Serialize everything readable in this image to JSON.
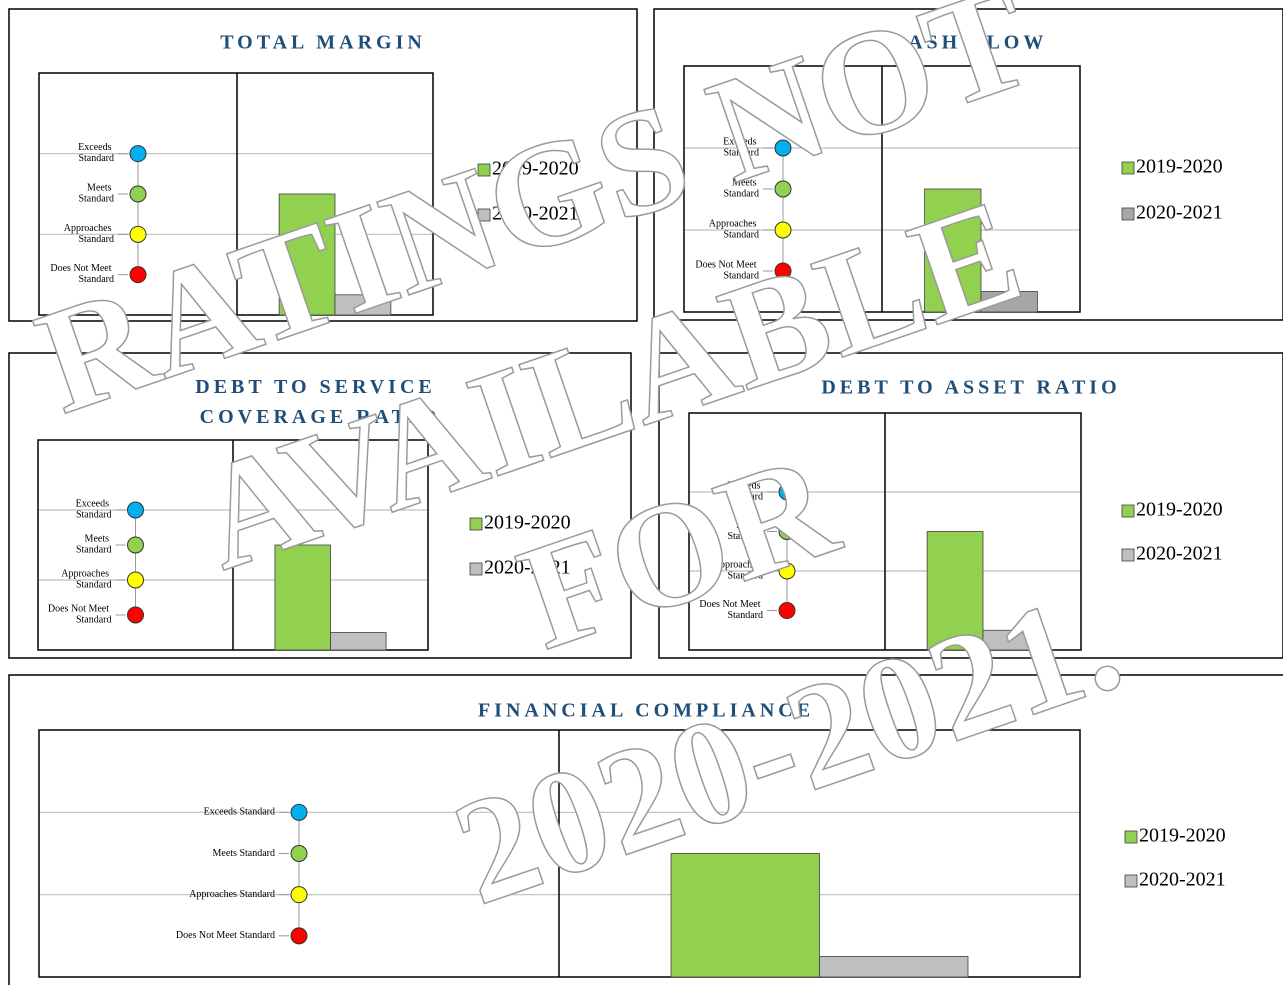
{
  "chart_data": [
    {
      "type": "bar",
      "title": "TOTAL MARGIN",
      "series": [
        {
          "name": "2019-2020",
          "color": "#92d050",
          "values": [
            3
          ]
        },
        {
          "name": "2020-2021",
          "color": "#bfbfbf",
          "values": [
            0.5
          ]
        }
      ],
      "ylim": [
        0,
        6
      ],
      "yticks": [
        {
          "value": 1,
          "label": "Does Not Meet Standard"
        },
        {
          "value": 2,
          "label": "Approaches Standard"
        },
        {
          "value": 3,
          "label": "Meets Standard"
        },
        {
          "value": 4,
          "label": "Exceeds Standard"
        }
      ],
      "tick_colors": [
        "#ff0000",
        "#ffff00",
        "#92d050",
        "#00b0f0"
      ],
      "gridlines": [
        2,
        4
      ]
    },
    {
      "type": "bar",
      "title": "CASH FLOW",
      "series": [
        {
          "name": "2019-2020",
          "color": "#92d050",
          "values": [
            3
          ]
        },
        {
          "name": "2020-2021",
          "color": "#a6a6a6",
          "values": [
            0.5
          ]
        }
      ],
      "ylim": [
        0,
        6
      ],
      "yticks": [
        {
          "value": 1,
          "label": "Does Not Meet Standard"
        },
        {
          "value": 2,
          "label": "Approaches Standard"
        },
        {
          "value": 3,
          "label": "Meets Standard"
        },
        {
          "value": 4,
          "label": "Exceeds Standard"
        }
      ],
      "tick_colors": [
        "#ff0000",
        "#ffff00",
        "#92d050",
        "#00b0f0"
      ],
      "gridlines": [
        2,
        4
      ]
    },
    {
      "type": "bar",
      "title": "DEBT TO SERVICE COVERAGE RATIO",
      "series": [
        {
          "name": "2019-2020",
          "color": "#92d050",
          "values": [
            3
          ]
        },
        {
          "name": "2020-2021",
          "color": "#bfbfbf",
          "values": [
            0.5
          ]
        }
      ],
      "ylim": [
        0,
        6
      ],
      "yticks": [
        {
          "value": 1,
          "label": "Does Not Meet Standard"
        },
        {
          "value": 2,
          "label": "Approaches Standard"
        },
        {
          "value": 3,
          "label": "Meets Standard"
        },
        {
          "value": 4,
          "label": "Exceeds Standard"
        }
      ],
      "tick_colors": [
        "#ff0000",
        "#ffff00",
        "#92d050",
        "#00b0f0"
      ],
      "gridlines": [
        2,
        4
      ]
    },
    {
      "type": "bar",
      "title": "DEBT TO ASSET RATIO",
      "series": [
        {
          "name": "2019-2020",
          "color": "#92d050",
          "values": [
            3
          ]
        },
        {
          "name": "2020-2021",
          "color": "#bfbfbf",
          "values": [
            0.5
          ]
        }
      ],
      "ylim": [
        0,
        6
      ],
      "yticks": [
        {
          "value": 1,
          "label": "Does Not Meet Standard"
        },
        {
          "value": 2,
          "label": "Approaches Standard"
        },
        {
          "value": 3,
          "label": "Meets Standard"
        },
        {
          "value": 4,
          "label": "Exceeds Standard"
        }
      ],
      "tick_colors": [
        "#ff0000",
        "#ffff00",
        "#92d050",
        "#00b0f0"
      ],
      "gridlines": [
        2,
        4
      ]
    },
    {
      "type": "bar",
      "title": "FINANCIAL COMPLIANCE",
      "series": [
        {
          "name": "2019-2020",
          "color": "#92d050",
          "values": [
            3
          ]
        },
        {
          "name": "2020-2021",
          "color": "#bfbfbf",
          "values": [
            0.5
          ]
        }
      ],
      "ylim": [
        0,
        6
      ],
      "yticks": [
        {
          "value": 1,
          "label": "Does Not Meet Standard"
        },
        {
          "value": 2,
          "label": "Approaches Standard"
        },
        {
          "value": 3,
          "label": "Meets Standard"
        },
        {
          "value": 4,
          "label": "Exceeds Standard"
        }
      ],
      "tick_colors": [
        "#ff0000",
        "#ffff00",
        "#92d050",
        "#00b0f0"
      ],
      "gridlines": [
        2,
        4
      ]
    }
  ],
  "watermark": [
    "RATINGS NOT",
    "AVAILABLE",
    "FOR",
    "2020-2021."
  ]
}
